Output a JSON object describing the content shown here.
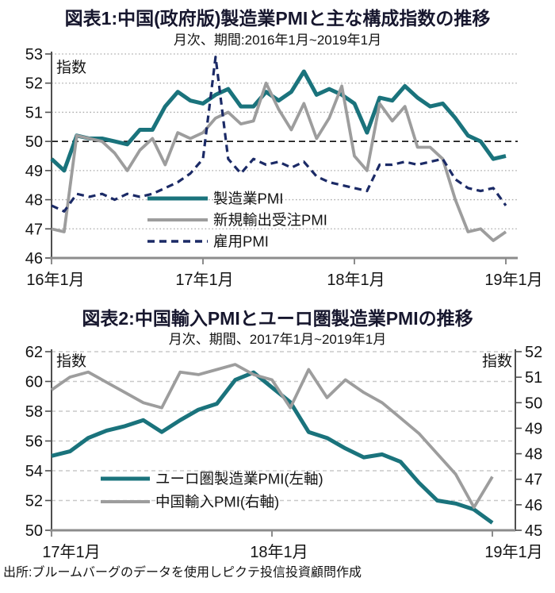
{
  "page": {
    "source": "出所:ブルームバーグのデータを使用しピクテ投信投資顧問作成"
  },
  "chart_data": [
    {
      "type": "line",
      "title": "図表1:中国(政府版)製造業PMIと主な構成指数の推移",
      "subtitle": "月次、期間:2016年1月~2019年1月",
      "unit_label": "指数",
      "x_tick_labels": [
        "16年1月",
        "17年1月",
        "18年1月",
        "19年1月"
      ],
      "ylim": [
        46,
        53
      ],
      "y_tick_labels": [
        53,
        52,
        51,
        50,
        49,
        48,
        47,
        46
      ],
      "reference_line_y": 50,
      "grid": "dotted-horizontal",
      "legend_position": "inside-bottom-left",
      "series": [
        {
          "name": "製造業PMI",
          "color": "#1a737c",
          "line_style": "solid",
          "values": [
            49.4,
            49.0,
            50.2,
            50.1,
            50.1,
            50.0,
            49.9,
            50.4,
            50.4,
            51.2,
            51.7,
            51.4,
            51.3,
            51.6,
            51.8,
            51.2,
            51.2,
            51.7,
            51.4,
            51.7,
            52.4,
            51.6,
            51.8,
            51.6,
            51.3,
            50.3,
            51.5,
            51.4,
            51.9,
            51.5,
            51.2,
            51.3,
            50.8,
            50.2,
            50.0,
            49.4,
            49.5
          ]
        },
        {
          "name": "新規輸出受注PMI",
          "color": "#9d9d9d",
          "line_style": "solid",
          "values": [
            47.0,
            46.9,
            50.2,
            50.1,
            50.0,
            49.6,
            49.0,
            49.7,
            50.1,
            49.2,
            50.3,
            50.1,
            50.3,
            50.8,
            51.0,
            50.6,
            50.7,
            52.0,
            51.1,
            50.4,
            51.3,
            50.1,
            50.8,
            51.9,
            49.5,
            49.0,
            51.3,
            50.7,
            51.2,
            49.8,
            49.8,
            49.4,
            48.0,
            46.9,
            47.0,
            46.6,
            46.9
          ]
        },
        {
          "name": "雇用PMI",
          "color": "#1b2a66",
          "line_style": "dashed",
          "values": [
            47.8,
            47.6,
            48.2,
            48.1,
            48.2,
            48.0,
            48.2,
            48.1,
            48.2,
            48.4,
            48.6,
            48.9,
            49.4,
            52.9,
            49.4,
            48.9,
            49.4,
            49.2,
            49.3,
            49.1,
            49.3,
            48.8,
            48.6,
            48.5,
            48.4,
            48.3,
            49.2,
            49.2,
            49.3,
            49.2,
            49.3,
            49.4,
            48.7,
            48.4,
            48.3,
            48.4,
            47.8
          ]
        }
      ]
    },
    {
      "type": "line",
      "title": "図表2:中国輸入PMIとユーロ圏製造業PMIの推移",
      "subtitle": "月次、期間、2017年1月~2019年1月",
      "unit_label_left": "指数",
      "unit_label_right": "指数",
      "x_tick_labels": [
        "17年1月",
        "18年1月",
        "19年1月"
      ],
      "ylim_left": [
        50,
        62
      ],
      "ylim_right": [
        45,
        52
      ],
      "y_tick_labels_left": [
        62,
        60,
        58,
        56,
        54,
        52,
        50
      ],
      "y_tick_labels_right": [
        52,
        51,
        50,
        49,
        48,
        47,
        46,
        45
      ],
      "grid": "dashed-horizontal",
      "legend_position": "inside-bottom-left",
      "series": [
        {
          "name": "ユーロ圏製造業PMI(左軸)",
          "axis": "left",
          "color": "#1a737c",
          "line_style": "solid",
          "values": [
            55.0,
            55.3,
            56.2,
            56.7,
            57.0,
            57.4,
            56.6,
            57.4,
            58.1,
            58.5,
            60.1,
            60.6,
            59.6,
            58.6,
            56.6,
            56.2,
            55.5,
            54.9,
            55.1,
            54.6,
            53.2,
            52.0,
            51.8,
            51.4,
            50.5
          ]
        },
        {
          "name": "中国輸入PMI(右軸)",
          "axis": "right",
          "color": "#9d9d9d",
          "line_style": "solid",
          "values": [
            50.5,
            51.0,
            51.2,
            50.8,
            50.4,
            50.0,
            49.8,
            51.2,
            51.1,
            51.3,
            51.5,
            51.1,
            50.9,
            49.8,
            51.3,
            50.2,
            50.9,
            50.4,
            50.0,
            49.4,
            48.8,
            48.0,
            47.2,
            45.9,
            47.1
          ]
        }
      ]
    }
  ]
}
